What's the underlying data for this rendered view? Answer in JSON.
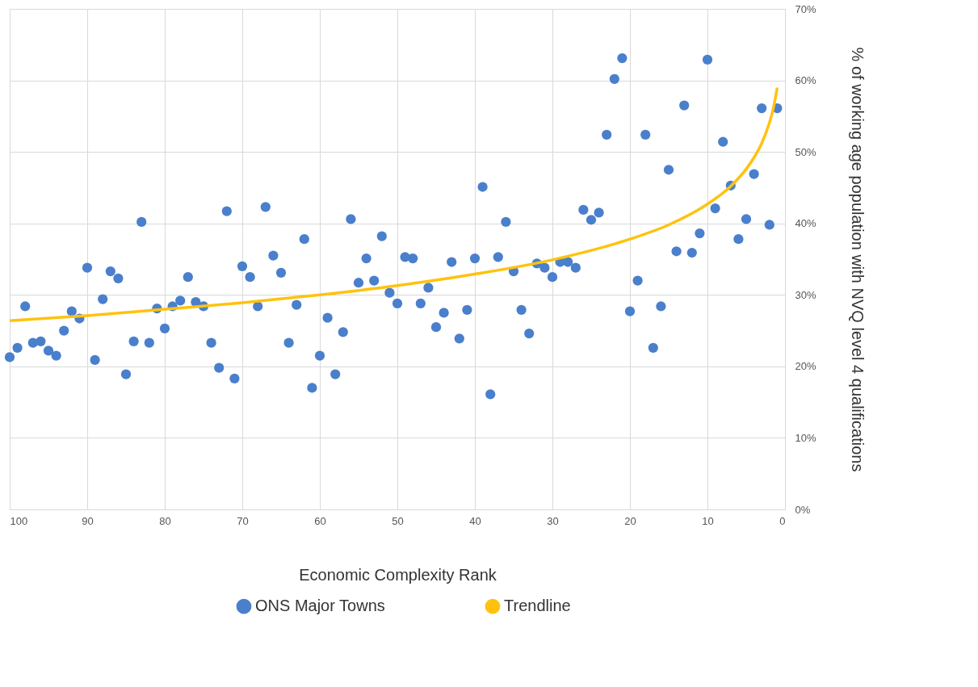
{
  "chart_data": {
    "type": "scatter",
    "xlabel": "Economic Complexity Rank",
    "ylabel": "% of working age population with NVQ level 4 qualifications",
    "xlim": [
      100,
      0
    ],
    "xticks": [
      100,
      90,
      80,
      70,
      60,
      50,
      40,
      30,
      20,
      10,
      0
    ],
    "ylim": [
      0,
      70
    ],
    "yticks": [
      {
        "value": 0,
        "label": "0%"
      },
      {
        "value": 10,
        "label": "10%"
      },
      {
        "value": 20,
        "label": "20%"
      },
      {
        "value": 30,
        "label": "30%"
      },
      {
        "value": 40,
        "label": "40%"
      },
      {
        "value": 50,
        "label": "50%"
      },
      {
        "value": 60,
        "label": "60%"
      },
      {
        "value": 70,
        "label": "70%"
      }
    ],
    "grid": true,
    "legend": "bottom",
    "series": [
      {
        "name": "ONS Major Towns",
        "color": "#4a7fcc",
        "marker": "circle",
        "x": [
          100,
          99,
          98,
          97,
          96,
          95,
          94,
          93,
          92,
          91,
          90,
          89,
          88,
          87,
          86,
          85,
          84,
          83,
          82,
          81,
          80,
          79,
          78,
          77,
          76,
          75,
          74,
          73,
          72,
          71,
          70,
          69,
          68,
          67,
          66,
          65,
          64,
          63,
          62,
          61,
          60,
          59,
          58,
          57,
          56,
          55,
          54,
          53,
          52,
          51,
          50,
          49,
          48,
          47,
          46,
          45,
          44,
          43,
          42,
          41,
          40,
          39,
          38,
          37,
          36,
          35,
          34,
          33,
          32,
          31,
          30,
          29,
          28,
          27,
          26,
          25,
          24,
          23,
          22,
          21,
          20,
          19,
          18,
          17,
          16,
          15,
          14,
          13,
          12,
          11,
          10,
          9,
          8,
          7,
          6,
          5,
          4,
          3,
          2,
          1
        ],
        "values": [
          21.3,
          22.6,
          28.4,
          23.3,
          23.5,
          22.2,
          21.5,
          25.0,
          27.7,
          26.7,
          33.8,
          20.9,
          29.4,
          33.3,
          32.3,
          18.9,
          23.5,
          40.2,
          23.3,
          28.1,
          25.3,
          28.4,
          29.2,
          32.5,
          29.0,
          28.4,
          23.3,
          19.8,
          41.7,
          18.3,
          34.0,
          32.5,
          28.4,
          42.3,
          35.5,
          33.1,
          23.3,
          28.6,
          37.8,
          17.0,
          21.5,
          26.8,
          18.9,
          24.8,
          40.6,
          31.7,
          35.1,
          32.0,
          38.2,
          30.3,
          28.8,
          35.3,
          35.1,
          28.8,
          31.0,
          25.5,
          27.5,
          34.6,
          23.9,
          27.9,
          35.1,
          45.1,
          16.1,
          35.3,
          40.2,
          33.3,
          27.9,
          24.6,
          34.4,
          33.8,
          32.5,
          34.6,
          34.6,
          33.8,
          41.9,
          40.5,
          41.5,
          52.4,
          60.2,
          63.1,
          27.7,
          32.0,
          52.4,
          22.6,
          28.4,
          47.5,
          36.1,
          56.5,
          35.9,
          38.6,
          62.9,
          42.1,
          51.4,
          45.3,
          37.8,
          40.6,
          46.9,
          56.1,
          39.8,
          56.1
        ]
      },
      {
        "name": "Trendline",
        "color": "#ffc20e",
        "type": "line",
        "x": [
          100,
          90,
          80,
          70,
          60,
          50,
          40,
          30,
          20,
          15,
          10,
          7,
          5,
          4,
          3,
          2,
          1.5,
          1
        ],
        "values": [
          26.4,
          27.1,
          28.0,
          28.9,
          30.0,
          31.3,
          32.9,
          34.9,
          37.8,
          39.8,
          42.7,
          45.2,
          47.6,
          49.2,
          51.2,
          54.1,
          56.1,
          59.0
        ]
      }
    ]
  }
}
